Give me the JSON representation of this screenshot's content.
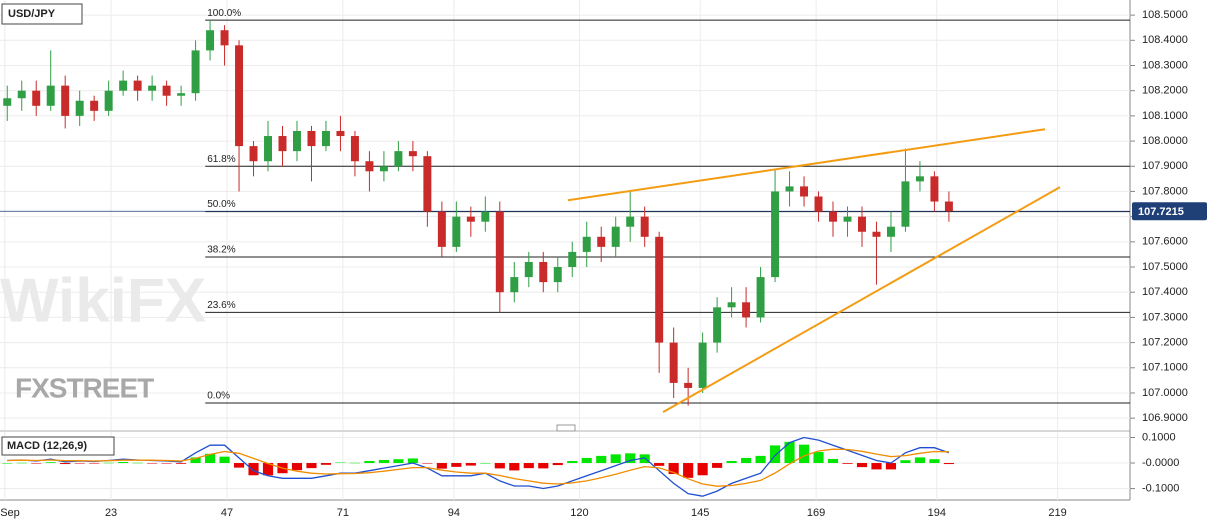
{
  "chart_data": [
    {
      "type": "candlestick",
      "title": "USD/JPY",
      "x": [
        1.5,
        4.5,
        7.5,
        10.5,
        13.5,
        16.5,
        19.5,
        22.5,
        25.5,
        28.5,
        31.5,
        34.5,
        37.5,
        40.5,
        43.5,
        46.5,
        49.5,
        52.5,
        55.5,
        58.5,
        61.5,
        64.5,
        67.5,
        70.5,
        73.5,
        76.5,
        79.5,
        82.5,
        85.5,
        88.5,
        91.5,
        94.5,
        97.5,
        100.5,
        103.5,
        106.5,
        109.5,
        112.5,
        115.5,
        118.5,
        121.5,
        124.5,
        127.5,
        130.5,
        133.5,
        136.5,
        139.5,
        142.5,
        145.5,
        148.5,
        151.5,
        154.5,
        157.5,
        160.5,
        163.5,
        166.5,
        169.5,
        172.5,
        175.5,
        178.5,
        181.5,
        184.5,
        187.5,
        190.5,
        193.5,
        196.5
      ],
      "open": [
        108.14,
        108.17,
        108.2,
        108.14,
        108.22,
        108.1,
        108.16,
        108.12,
        108.2,
        108.24,
        108.2,
        108.22,
        108.18,
        108.19,
        108.36,
        108.44,
        108.38,
        107.98,
        107.92,
        108.02,
        107.96,
        108.04,
        107.98,
        108.04,
        108.02,
        107.92,
        107.88,
        107.9,
        107.96,
        107.94,
        107.72,
        107.58,
        107.7,
        107.68,
        107.72,
        107.4,
        107.46,
        107.52,
        107.44,
        107.5,
        107.56,
        107.62,
        107.58,
        107.66,
        107.7,
        107.62,
        107.2,
        107.04,
        107.02,
        107.2,
        107.34,
        107.36,
        107.3,
        107.46,
        107.8,
        107.82,
        107.78,
        107.72,
        107.68,
        107.7,
        107.64,
        107.62,
        107.66,
        107.84,
        107.86,
        107.76
      ],
      "high": [
        108.22,
        108.24,
        108.24,
        108.36,
        108.26,
        108.2,
        108.18,
        108.24,
        108.28,
        108.26,
        108.26,
        108.24,
        108.22,
        108.4,
        108.48,
        108.46,
        108.4,
        108.0,
        108.08,
        108.06,
        108.08,
        108.06,
        108.08,
        108.1,
        108.04,
        107.96,
        107.96,
        108.0,
        108.0,
        107.96,
        107.76,
        107.76,
        107.74,
        107.78,
        107.76,
        107.52,
        107.56,
        107.56,
        107.54,
        107.6,
        107.68,
        107.66,
        107.7,
        107.8,
        107.74,
        107.64,
        107.26,
        107.1,
        107.24,
        107.38,
        107.42,
        107.42,
        107.5,
        107.89,
        107.88,
        107.86,
        107.8,
        107.76,
        107.74,
        107.74,
        107.68,
        107.72,
        107.97,
        107.92,
        107.88,
        107.8
      ],
      "low": [
        108.08,
        108.12,
        108.1,
        108.12,
        108.05,
        108.06,
        108.08,
        108.1,
        108.18,
        108.16,
        108.16,
        108.14,
        108.14,
        108.16,
        108.32,
        108.3,
        107.8,
        107.86,
        107.88,
        107.9,
        107.92,
        107.84,
        107.96,
        107.96,
        107.86,
        107.8,
        107.84,
        107.88,
        107.88,
        107.66,
        107.54,
        107.56,
        107.62,
        107.64,
        107.32,
        107.36,
        107.42,
        107.4,
        107.4,
        107.46,
        107.5,
        107.52,
        107.54,
        107.6,
        107.58,
        107.08,
        106.98,
        106.95,
        107.0,
        107.16,
        107.3,
        107.26,
        107.28,
        107.44,
        107.74,
        107.74,
        107.68,
        107.62,
        107.62,
        107.58,
        107.43,
        107.56,
        107.64,
        107.8,
        107.72,
        107.68
      ],
      "close": [
        108.17,
        108.2,
        108.14,
        108.22,
        108.1,
        108.16,
        108.12,
        108.2,
        108.24,
        108.2,
        108.22,
        108.18,
        108.19,
        108.36,
        108.44,
        108.38,
        107.98,
        107.92,
        108.02,
        107.96,
        108.04,
        107.98,
        108.04,
        108.02,
        107.92,
        107.88,
        107.9,
        107.96,
        107.94,
        107.72,
        107.58,
        107.7,
        107.68,
        107.72,
        107.4,
        107.46,
        107.52,
        107.44,
        107.5,
        107.56,
        107.62,
        107.58,
        107.66,
        107.7,
        107.62,
        107.2,
        107.04,
        107.02,
        107.2,
        107.34,
        107.36,
        107.3,
        107.46,
        107.8,
        107.82,
        107.78,
        107.72,
        107.68,
        107.7,
        107.64,
        107.62,
        107.66,
        107.84,
        107.86,
        107.76,
        107.7215
      ],
      "up_color": "#2f9e44",
      "down_color": "#c92a2a",
      "xlim": [
        0,
        234
      ],
      "xticks": [
        {
          "value": 1,
          "label": "Sep"
        },
        23,
        47,
        71,
        94,
        120,
        145,
        169,
        194,
        219
      ],
      "ylim": [
        106.853,
        108.56
      ],
      "yticks": [
        {
          "value": 106.9,
          "label": "106.9000"
        },
        {
          "value": 107.0,
          "label": "107.0000"
        },
        {
          "value": 107.1,
          "label": "107.1000"
        },
        {
          "value": 107.2,
          "label": "107.2000"
        },
        {
          "value": 107.3,
          "label": "107.3000"
        },
        {
          "value": 107.4,
          "label": "107.4000"
        },
        {
          "value": 107.5,
          "label": "107.5000"
        },
        {
          "value": 107.6,
          "label": "107.6000"
        },
        {
          "value": 107.7,
          "label": "107.7000"
        },
        {
          "value": 107.8,
          "label": "107.8000"
        },
        {
          "value": 107.9,
          "label": "107.9000"
        },
        {
          "value": 108.0,
          "label": "108.0000"
        },
        {
          "value": 108.1,
          "label": "108.1000"
        },
        {
          "value": 108.2,
          "label": "108.2000"
        },
        {
          "value": 108.3,
          "label": "108.3000"
        },
        {
          "value": 108.4,
          "label": "108.4000"
        },
        {
          "value": 108.5,
          "label": "108.5000"
        }
      ],
      "grid": true,
      "last_price": 107.7215,
      "last_price_color": "#1f3f77",
      "fib_start_x": 42.5,
      "fib_levels": [
        {
          "label": "100.0%",
          "value": 108.48
        },
        {
          "label": "61.8%",
          "value": 107.9
        },
        {
          "label": "50.0%",
          "value": 107.72
        },
        {
          "label": "38.2%",
          "value": 107.54
        },
        {
          "label": "23.6%",
          "value": 107.32
        },
        {
          "label": "0.0%",
          "value": 106.96
        }
      ],
      "trendlines": [
        {
          "color": "#f39c12",
          "x": [
            117.6,
            216.4
          ],
          "y": [
            107.765,
            108.047
          ]
        },
        {
          "color": "#f39c12",
          "x": [
            137.3,
            219.5
          ],
          "y": [
            106.924,
            107.817
          ]
        }
      ],
      "watermarks": [
        "WikiFX",
        "FXSTREET"
      ]
    },
    {
      "type": "macd",
      "title": "MACD (12,26,9)",
      "x": [
        1.5,
        4.5,
        7.5,
        10.5,
        13.5,
        16.5,
        19.5,
        22.5,
        25.5,
        28.5,
        31.5,
        34.5,
        37.5,
        40.5,
        43.5,
        46.5,
        49.5,
        52.5,
        55.5,
        58.5,
        61.5,
        64.5,
        67.5,
        70.5,
        73.5,
        76.5,
        79.5,
        82.5,
        85.5,
        88.5,
        91.5,
        94.5,
        97.5,
        100.5,
        103.5,
        106.5,
        109.5,
        112.5,
        115.5,
        118.5,
        121.5,
        124.5,
        127.5,
        130.5,
        133.5,
        136.5,
        139.5,
        142.5,
        145.5,
        148.5,
        151.5,
        154.5,
        157.5,
        160.5,
        163.5,
        166.5,
        169.5,
        172.5,
        175.5,
        178.5,
        181.5,
        184.5,
        187.5,
        190.5,
        193.5,
        196.5
      ],
      "histogram": [
        0,
        0.001,
        -0.002,
        0.003,
        -0.004,
        -0.001,
        -0.002,
        0.001,
        0.004,
        0.001,
        -0.001,
        -0.002,
        -0.003,
        0.022,
        0.036,
        0.025,
        -0.018,
        -0.048,
        -0.048,
        -0.04,
        -0.028,
        -0.02,
        -0.007,
        0.002,
        0.001,
        0.008,
        0.012,
        0.015,
        0.018,
        -0.002,
        -0.022,
        -0.015,
        -0.01,
        0,
        -0.021,
        -0.029,
        -0.02,
        -0.021,
        -0.008,
        0.008,
        0.02,
        0.028,
        0.034,
        0.038,
        0.034,
        -0.011,
        -0.043,
        -0.058,
        -0.048,
        -0.019,
        0.008,
        0.02,
        0.028,
        0.069,
        0.083,
        0.072,
        0.043,
        0.016,
        -0.003,
        -0.016,
        -0.025,
        -0.025,
        0.011,
        0.022,
        0.015,
        -0.004
      ],
      "up_color": "#00e600",
      "down_color": "#e60000",
      "series": [
        {
          "color": "#1f4fd1",
          "values": [
            0.01,
            0.012,
            0.008,
            0.015,
            0.005,
            0.008,
            0.006,
            0.01,
            0.015,
            0.012,
            0.01,
            0.008,
            0.005,
            0.04,
            0.07,
            0.07,
            0.02,
            -0.03,
            -0.05,
            -0.06,
            -0.06,
            -0.06,
            -0.05,
            -0.04,
            -0.04,
            -0.03,
            -0.02,
            -0.01,
            0.0,
            -0.02,
            -0.05,
            -0.05,
            -0.05,
            -0.04,
            -0.07,
            -0.09,
            -0.09,
            -0.1,
            -0.09,
            -0.07,
            -0.05,
            -0.03,
            -0.01,
            0.01,
            0.02,
            -0.03,
            -0.08,
            -0.12,
            -0.13,
            -0.11,
            -0.08,
            -0.06,
            -0.04,
            0.03,
            0.08,
            0.1,
            0.09,
            0.07,
            0.05,
            0.03,
            0.01,
            0.0,
            0.04,
            0.06,
            0.06,
            0.04
          ]
        },
        {
          "color": "#f08c00",
          "values": [
            0.01,
            0.011,
            0.01,
            0.012,
            0.009,
            0.009,
            0.008,
            0.009,
            0.011,
            0.011,
            0.011,
            0.01,
            0.008,
            0.018,
            0.034,
            0.045,
            0.038,
            0.018,
            -0.002,
            -0.02,
            -0.032,
            -0.04,
            -0.043,
            -0.042,
            -0.041,
            -0.038,
            -0.032,
            -0.025,
            -0.018,
            -0.018,
            -0.028,
            -0.035,
            -0.04,
            -0.04,
            -0.049,
            -0.061,
            -0.07,
            -0.079,
            -0.082,
            -0.078,
            -0.07,
            -0.058,
            -0.044,
            -0.028,
            -0.014,
            -0.019,
            -0.037,
            -0.062,
            -0.082,
            -0.091,
            -0.088,
            -0.08,
            -0.068,
            -0.039,
            -0.003,
            0.028,
            0.047,
            0.054,
            0.053,
            0.046,
            0.035,
            0.025,
            0.029,
            0.038,
            0.045,
            0.044
          ]
        }
      ],
      "ylim": [
        -0.1449,
        0.1216
      ],
      "yticks": [
        {
          "value": 0.1,
          "label": "0.1000"
        },
        {
          "value": 0,
          "label": "-0.0000"
        },
        {
          "value": -0.1,
          "label": "-0.1000"
        }
      ],
      "grid": true
    }
  ]
}
